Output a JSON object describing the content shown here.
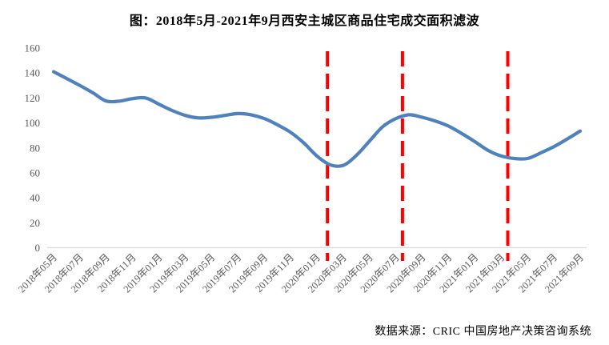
{
  "chart_data": {
    "type": "line",
    "title": "图：2018年5月-2021年9月西安主城区商品住宅成交面积滤波",
    "source_note": "数据来源：CRIC 中国房地产决策咨询系统",
    "xlabel": "",
    "ylabel": "",
    "ylim": [
      0,
      160
    ],
    "y_ticks": [
      0,
      20,
      40,
      60,
      80,
      100,
      120,
      140,
      160
    ],
    "x_tick_labels": [
      "2018年05月",
      "2018年07月",
      "2018年09月",
      "2018年11月",
      "2019年01月",
      "2019年03月",
      "2019年05月",
      "2019年07月",
      "2019年09月",
      "2019年11月",
      "2020年01月",
      "2020年03月",
      "2020年05月",
      "2020年07月",
      "2020年09月",
      "2020年11月",
      "2021年01月",
      "2021年03月",
      "2021年05月",
      "2021年07月",
      "2021年09月"
    ],
    "x_tick_every": 2,
    "series": [
      {
        "values": [
          141,
          135.5,
          130,
          124,
          117.5,
          117.5,
          119.5,
          120,
          115,
          110,
          106,
          104,
          104.5,
          106,
          107.5,
          106.5,
          103.5,
          98.5,
          92.5,
          84,
          73.5,
          66.5,
          66,
          74,
          85.5,
          97,
          103.5,
          106.5,
          104.5,
          101.5,
          97.5,
          91.5,
          85,
          78,
          73.5,
          71.5,
          71.5,
          76,
          81,
          87,
          93.5
        ]
      }
    ],
    "vlines": {
      "x_month_offsets": [
        20.8,
        26.5,
        34.5
      ],
      "style": "dashed",
      "color": "#FF0000"
    },
    "colors": {
      "line": "#4F81BD",
      "axis": "#D9D9D9",
      "tick_labels": "#595959",
      "title": "#000000"
    },
    "grid": false,
    "legend": false
  }
}
